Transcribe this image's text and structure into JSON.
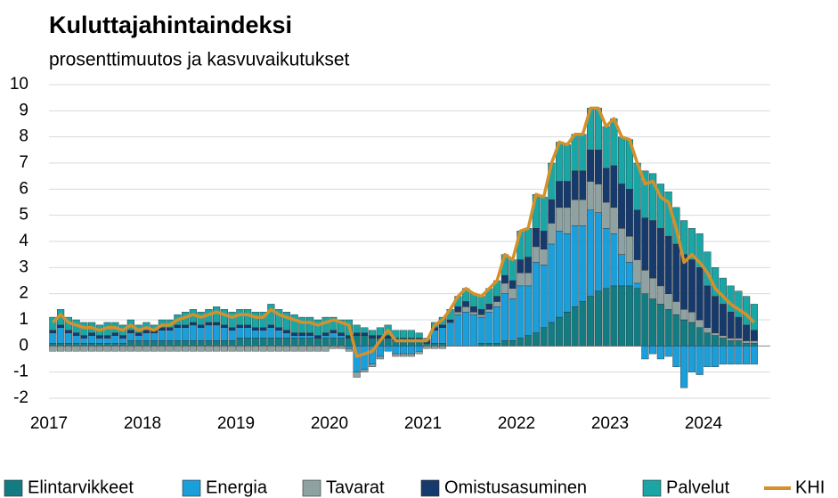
{
  "chart_data": {
    "type": "bar",
    "stacked": true,
    "title": "Kuluttajahintaindeksi",
    "subtitle": "prosenttimuutos ja kasvuvaikutukset",
    "categories": [
      "2017",
      null,
      null,
      null,
      null,
      null,
      null,
      null,
      null,
      null,
      null,
      null,
      "2018",
      null,
      null,
      null,
      null,
      null,
      null,
      null,
      null,
      null,
      null,
      null,
      "2019",
      null,
      null,
      null,
      null,
      null,
      null,
      null,
      null,
      null,
      null,
      null,
      "2020",
      null,
      null,
      null,
      null,
      null,
      null,
      null,
      null,
      null,
      null,
      null,
      "2021",
      null,
      null,
      null,
      null,
      null,
      null,
      null,
      null,
      null,
      null,
      null,
      "2022",
      null,
      null,
      null,
      null,
      null,
      null,
      null,
      null,
      null,
      null,
      null,
      "2023",
      null,
      null,
      null,
      null,
      null,
      null,
      null,
      null,
      null,
      null,
      null,
      "2024",
      null,
      null,
      null,
      null,
      null,
      null
    ],
    "ylim": [
      -2,
      10
    ],
    "yticks": [
      -2,
      -1,
      0,
      1,
      2,
      3,
      4,
      5,
      6,
      7,
      8,
      9,
      10
    ],
    "grid": true,
    "series": [
      {
        "name": "Elintarvikkeet",
        "color": "#127c82",
        "values": [
          0.1,
          0.1,
          0.1,
          0.1,
          0.1,
          0.1,
          0.1,
          0.1,
          0.1,
          0.1,
          0.2,
          0.2,
          0.2,
          0.2,
          0.2,
          0.2,
          0.2,
          0.2,
          0.2,
          0.2,
          0.2,
          0.2,
          0.2,
          0.2,
          0.3,
          0.3,
          0.3,
          0.3,
          0.3,
          0.3,
          0.3,
          0.3,
          0.3,
          0.3,
          0.3,
          0.3,
          0.3,
          0.3,
          0.3,
          0.4,
          0.4,
          0.3,
          0.3,
          0.3,
          0.2,
          0.2,
          0.2,
          0.2,
          0.1,
          0.1,
          0.1,
          0.0,
          0.0,
          0.0,
          0.0,
          0.1,
          0.1,
          0.1,
          0.2,
          0.2,
          0.3,
          0.4,
          0.5,
          0.7,
          0.9,
          1.1,
          1.3,
          1.5,
          1.7,
          1.9,
          2.1,
          2.2,
          2.3,
          2.3,
          2.3,
          2.2,
          2.0,
          1.8,
          1.6,
          1.4,
          1.2,
          1.0,
          0.9,
          0.7,
          0.5,
          0.4,
          0.3,
          0.2,
          0.2,
          0.1,
          0.1
        ]
      },
      {
        "name": "Energia",
        "color": "#1b9fdb",
        "values": [
          0.4,
          0.6,
          0.4,
          0.3,
          0.2,
          0.3,
          0.2,
          0.2,
          0.3,
          0.2,
          0.3,
          0.2,
          0.3,
          0.3,
          0.4,
          0.4,
          0.5,
          0.5,
          0.6,
          0.5,
          0.6,
          0.6,
          0.5,
          0.4,
          0.4,
          0.4,
          0.3,
          0.3,
          0.4,
          0.3,
          0.2,
          0.1,
          0.1,
          0.1,
          0.0,
          0.1,
          0.2,
          0.1,
          -0.1,
          -1.0,
          -0.9,
          -0.7,
          -0.4,
          -0.2,
          -0.3,
          -0.3,
          -0.3,
          -0.2,
          0.0,
          0.5,
          0.6,
          0.9,
          1.2,
          1.3,
          1.2,
          1.0,
          1.2,
          1.4,
          1.8,
          1.6,
          2.0,
          1.9,
          2.7,
          2.4,
          3.0,
          3.3,
          3.0,
          3.1,
          2.9,
          3.3,
          3.0,
          2.3,
          2.0,
          1.2,
          0.9,
          0.2,
          -0.5,
          -0.3,
          -0.5,
          -0.4,
          -0.8,
          -1.6,
          -1.0,
          -1.1,
          -0.8,
          -0.8,
          -0.7,
          -0.7,
          -0.7,
          -0.7,
          -0.7
        ]
      },
      {
        "name": "Tavarat",
        "color": "#8fa2a2",
        "values": [
          -0.2,
          -0.2,
          -0.2,
          -0.2,
          -0.2,
          -0.2,
          -0.2,
          -0.2,
          -0.2,
          -0.2,
          -0.2,
          -0.2,
          -0.2,
          -0.2,
          -0.2,
          -0.2,
          -0.2,
          -0.2,
          -0.2,
          -0.2,
          -0.2,
          -0.2,
          -0.2,
          -0.2,
          -0.2,
          -0.2,
          -0.2,
          -0.2,
          -0.2,
          -0.2,
          -0.2,
          -0.2,
          -0.2,
          -0.2,
          -0.2,
          -0.2,
          -0.1,
          -0.1,
          -0.1,
          -0.2,
          -0.1,
          -0.1,
          -0.1,
          0.0,
          -0.1,
          -0.1,
          -0.1,
          -0.1,
          -0.1,
          -0.1,
          -0.1,
          0.0,
          0.1,
          0.2,
          0.1,
          0.1,
          0.1,
          0.2,
          0.4,
          0.4,
          0.5,
          0.5,
          0.6,
          0.6,
          0.8,
          0.9,
          1.0,
          1.0,
          1.0,
          1.1,
          1.1,
          1.0,
          1.0,
          1.0,
          1.0,
          0.9,
          0.9,
          0.8,
          0.7,
          0.6,
          0.5,
          0.4,
          0.4,
          0.3,
          0.2,
          0.1,
          0.1,
          0.1,
          0.1,
          0.1,
          0.1
        ]
      },
      {
        "name": "Omistusasuminen",
        "color": "#163a6b",
        "values": [
          0.1,
          0.1,
          0.1,
          0.1,
          0.1,
          0.1,
          0.1,
          0.1,
          0.1,
          0.1,
          0.1,
          0.1,
          0.1,
          0.1,
          0.1,
          0.1,
          0.1,
          0.1,
          0.1,
          0.1,
          0.1,
          0.1,
          0.1,
          0.1,
          0.1,
          0.1,
          0.1,
          0.1,
          0.1,
          0.1,
          0.1,
          0.1,
          0.1,
          0.1,
          0.1,
          0.1,
          0.1,
          0.1,
          0.1,
          0.1,
          0.1,
          0.1,
          0.1,
          0.1,
          0.1,
          0.1,
          0.1,
          0.1,
          0.1,
          0.1,
          0.1,
          0.1,
          0.2,
          0.2,
          0.2,
          0.2,
          0.2,
          0.2,
          0.3,
          0.3,
          0.5,
          0.6,
          0.7,
          0.7,
          0.9,
          1.0,
          1.0,
          1.1,
          1.1,
          1.2,
          1.3,
          1.3,
          1.6,
          1.7,
          1.8,
          1.9,
          2.0,
          2.2,
          2.2,
          2.2,
          2.2,
          2.1,
          2.0,
          2.0,
          1.6,
          1.4,
          1.2,
          1.0,
          0.8,
          0.6,
          0.4
        ]
      },
      {
        "name": "Palvelut",
        "color": "#1ba6a6",
        "values": [
          0.5,
          0.6,
          0.5,
          0.5,
          0.5,
          0.4,
          0.4,
          0.5,
          0.4,
          0.4,
          0.4,
          0.3,
          0.3,
          0.2,
          0.3,
          0.3,
          0.4,
          0.5,
          0.5,
          0.5,
          0.5,
          0.6,
          0.6,
          0.6,
          0.6,
          0.6,
          0.6,
          0.6,
          0.8,
          0.7,
          0.7,
          0.7,
          0.6,
          0.6,
          0.6,
          0.6,
          0.5,
          0.5,
          0.6,
          0.3,
          0.2,
          0.2,
          0.3,
          0.4,
          0.3,
          0.3,
          0.3,
          0.2,
          0.1,
          0.2,
          0.3,
          0.4,
          0.4,
          0.5,
          0.5,
          0.5,
          0.6,
          0.6,
          0.8,
          0.8,
          1.1,
          1.1,
          1.3,
          1.3,
          1.4,
          1.5,
          1.4,
          1.4,
          1.4,
          1.6,
          1.6,
          1.6,
          1.8,
          1.8,
          1.9,
          1.8,
          1.8,
          1.8,
          1.7,
          1.7,
          1.4,
          1.3,
          1.2,
          1.3,
          1.3,
          1.1,
          1.0,
          1.0,
          1.0,
          1.1,
          1.0
        ]
      },
      {
        "name": "KHI",
        "type": "line",
        "color": "#d4912b",
        "values": [
          0.9,
          1.2,
          0.9,
          0.8,
          0.7,
          0.7,
          0.6,
          0.7,
          0.7,
          0.6,
          0.8,
          0.6,
          0.7,
          0.6,
          0.8,
          0.8,
          1.0,
          1.1,
          1.2,
          1.1,
          1.2,
          1.3,
          1.2,
          1.1,
          1.2,
          1.2,
          1.1,
          1.1,
          1.4,
          1.2,
          1.1,
          1.0,
          0.9,
          0.9,
          0.8,
          0.9,
          1.0,
          0.9,
          0.8,
          -0.4,
          -0.3,
          -0.2,
          0.2,
          0.6,
          0.2,
          0.2,
          0.2,
          0.2,
          0.2,
          0.8,
          1.0,
          1.4,
          1.9,
          2.2,
          2.0,
          1.9,
          2.2,
          2.5,
          3.5,
          3.3,
          4.4,
          4.5,
          5.8,
          5.7,
          7.0,
          7.8,
          7.7,
          8.1,
          8.1,
          9.1,
          9.1,
          8.4,
          8.7,
          8.0,
          7.9,
          7.0,
          6.2,
          6.3,
          5.7,
          5.5,
          4.5,
          3.2,
          3.5,
          3.2,
          2.8,
          2.2,
          1.9,
          1.6,
          1.4,
          1.2,
          0.9
        ]
      }
    ]
  }
}
